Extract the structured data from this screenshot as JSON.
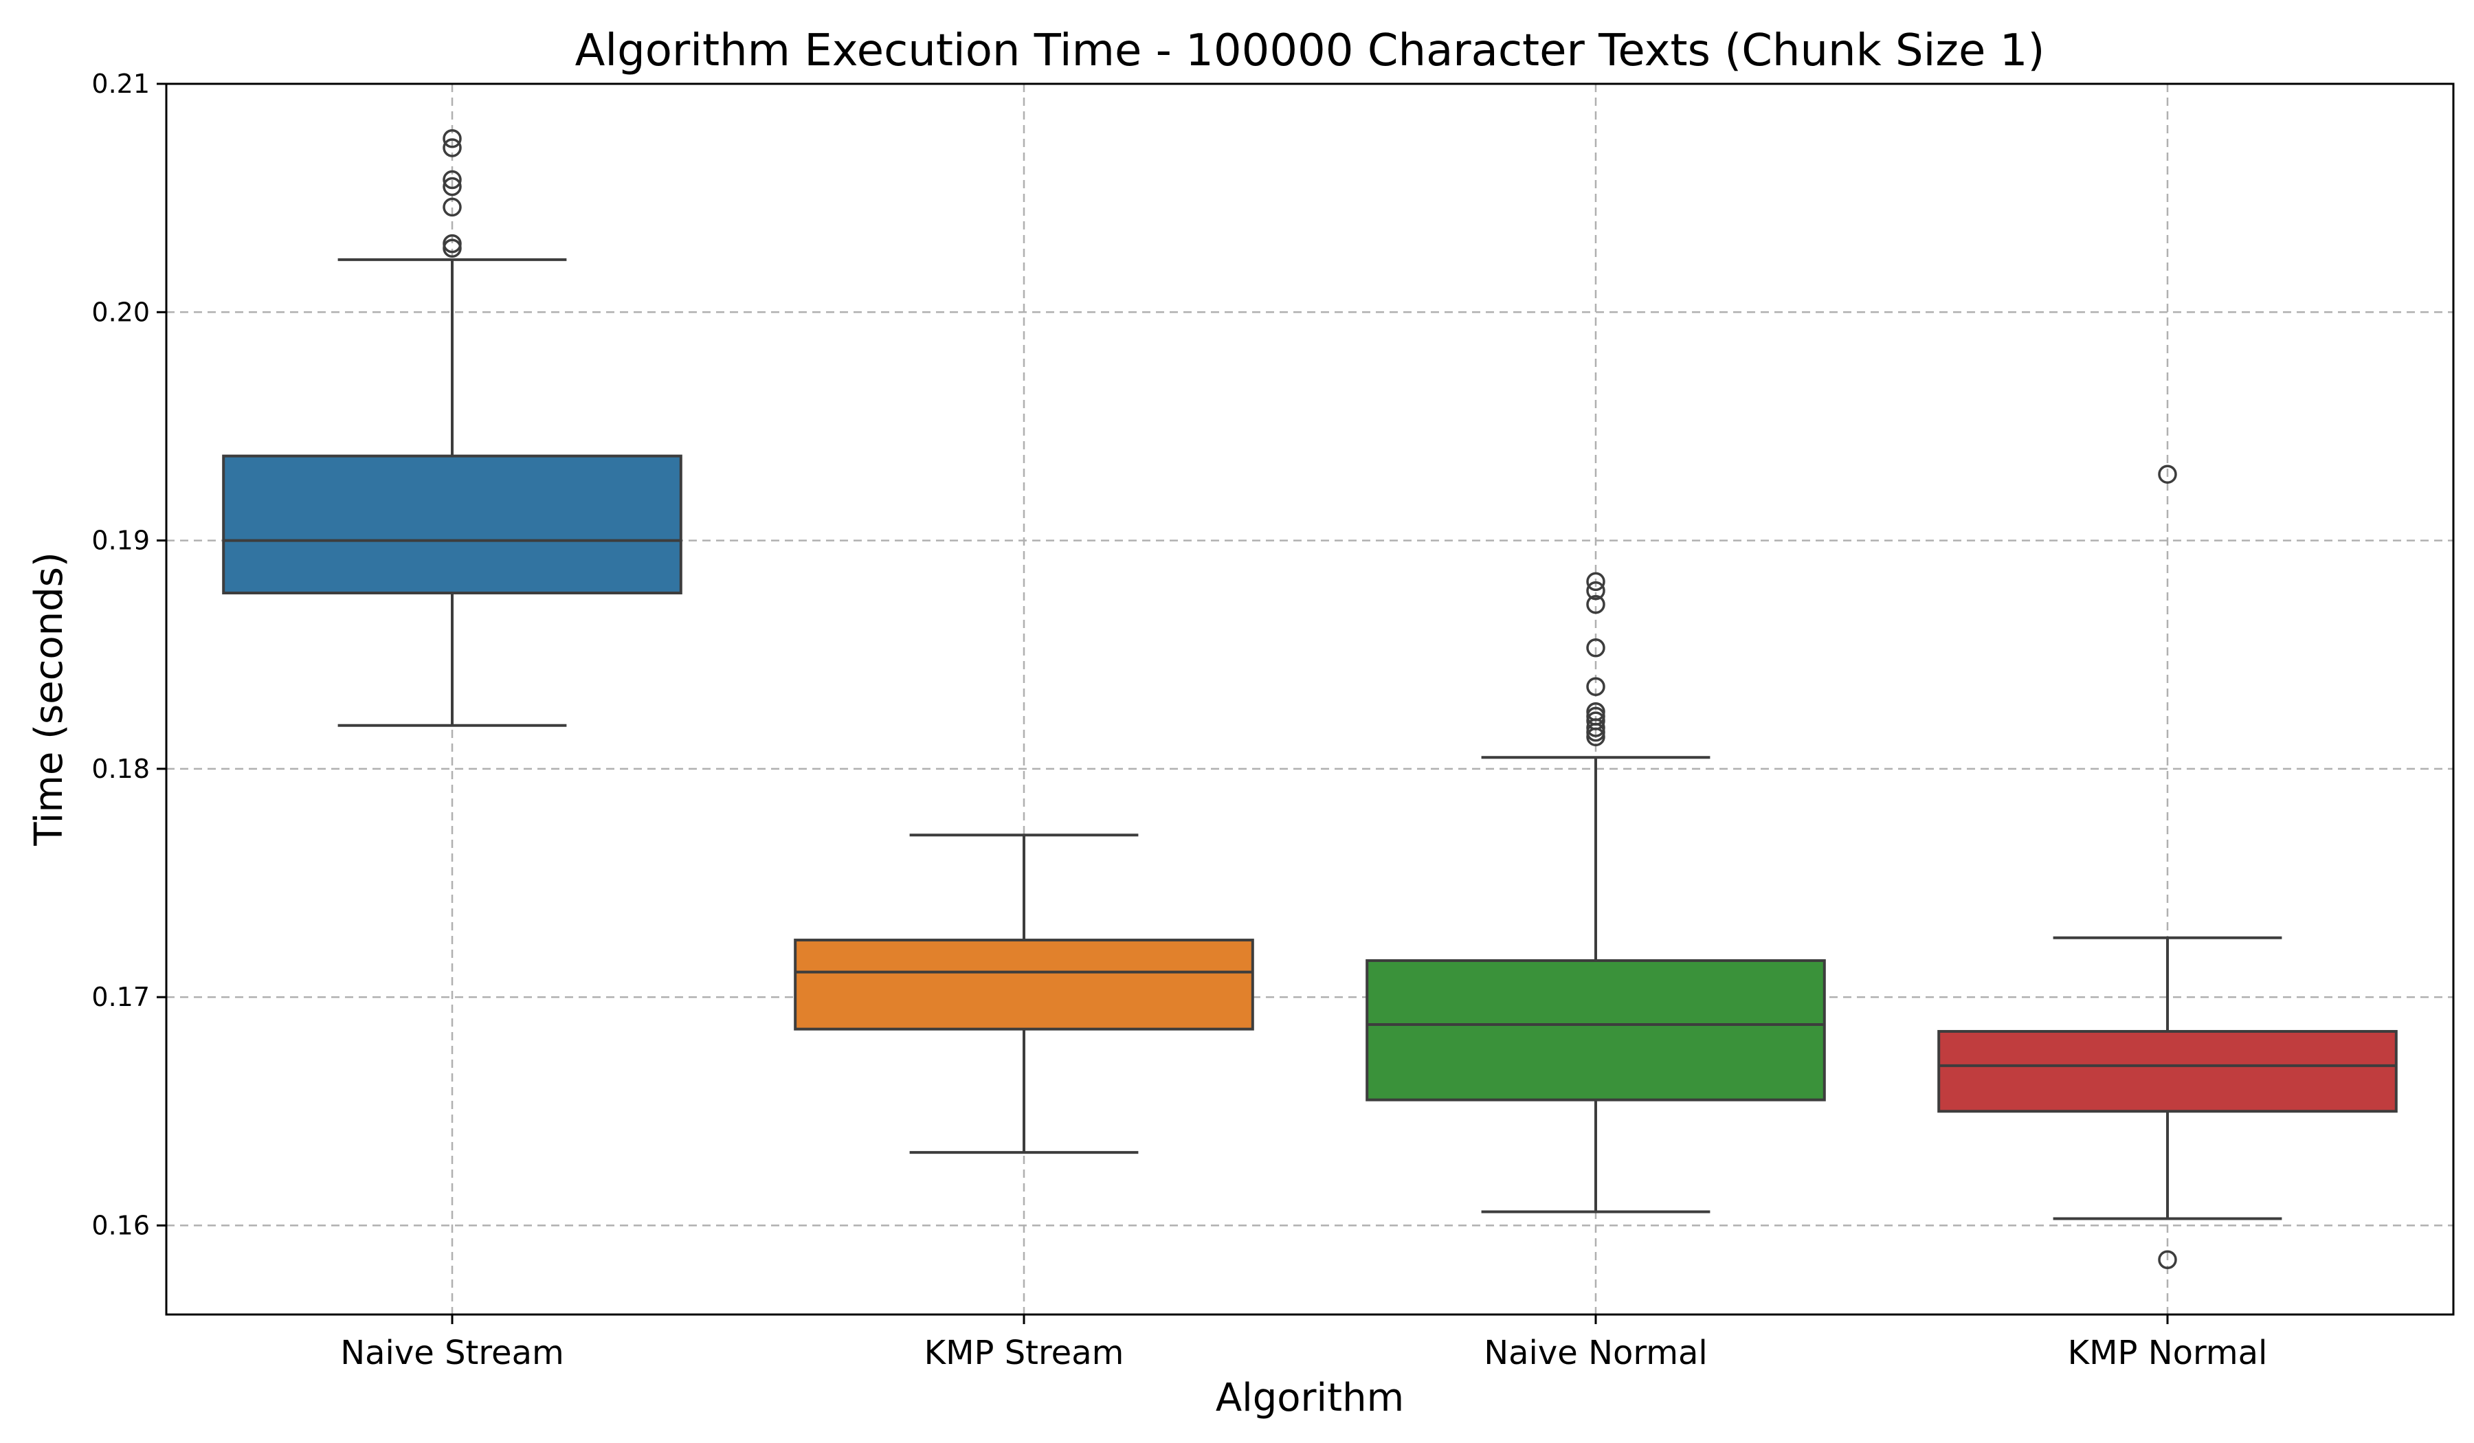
{
  "chart_data": {
    "type": "box",
    "title": "Algorithm Execution Time - 100000 Character Texts (Chunk Size 1)",
    "xlabel": "Algorithm",
    "ylabel": "Time (seconds)",
    "ylim": [
      0.1561,
      0.21
    ],
    "yticks": [
      0.16,
      0.17,
      0.18,
      0.19,
      0.2,
      0.21
    ],
    "ytick_labels": [
      "0.16",
      "0.17",
      "0.18",
      "0.19",
      "0.20",
      "0.21"
    ],
    "grid": true,
    "categories": [
      "Naive Stream",
      "KMP Stream",
      "Naive Normal",
      "KMP Normal"
    ],
    "colors": [
      "#3274a1",
      "#e1812c",
      "#3a923a",
      "#c03d3e"
    ],
    "boxes": [
      {
        "whisker_low": 0.1819,
        "q1": 0.1877,
        "median": 0.19,
        "q3": 0.1937,
        "whisker_high": 0.2023,
        "outliers": [
          0.2076,
          0.2072,
          0.2058,
          0.2055,
          0.2046,
          0.203,
          0.2028
        ]
      },
      {
        "whisker_low": 0.1632,
        "q1": 0.1686,
        "median": 0.1711,
        "q3": 0.1725,
        "whisker_high": 0.1771,
        "outliers": []
      },
      {
        "whisker_low": 0.1606,
        "q1": 0.1655,
        "median": 0.1688,
        "q3": 0.1716,
        "whisker_high": 0.1805,
        "outliers": [
          0.1882,
          0.1878,
          0.1872,
          0.1853,
          0.1836,
          0.1825,
          0.1823,
          0.1821,
          0.1818,
          0.1816,
          0.1814
        ]
      },
      {
        "whisker_low": 0.1603,
        "q1": 0.165,
        "median": 0.167,
        "q3": 0.1685,
        "whisker_high": 0.1726,
        "outliers": [
          0.1929,
          0.1585
        ]
      }
    ]
  }
}
